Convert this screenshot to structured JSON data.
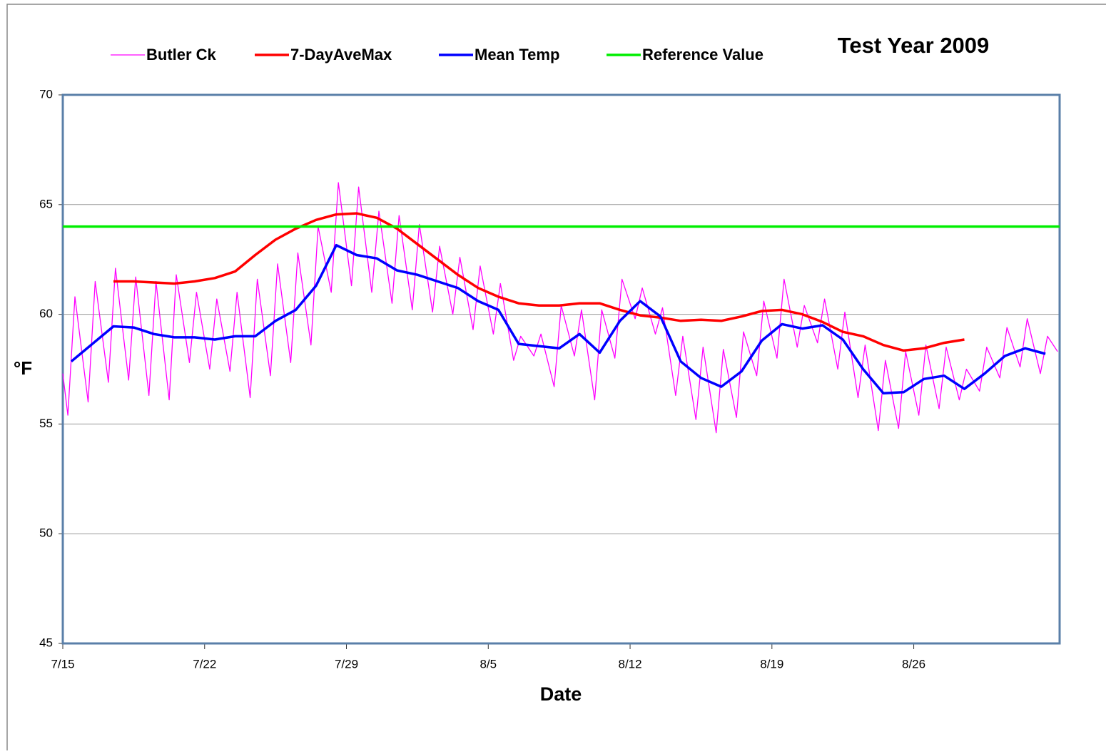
{
  "chart_data": {
    "type": "line",
    "title": "Test Year 2009",
    "xlabel": "Date",
    "ylabel": "°F",
    "xlim": [
      0,
      49.2
    ],
    "ylim": [
      45,
      70
    ],
    "xticks": [
      {
        "value": 0,
        "label": "7/15"
      },
      {
        "value": 7,
        "label": "7/22"
      },
      {
        "value": 14,
        "label": "7/29"
      },
      {
        "value": 21,
        "label": "8/5"
      },
      {
        "value": 28,
        "label": "8/12"
      },
      {
        "value": 35,
        "label": "8/19"
      },
      {
        "value": 42,
        "label": "8/26"
      }
    ],
    "yticks": [
      45,
      50,
      55,
      60,
      65,
      70
    ],
    "grid": true,
    "series": [
      {
        "name": "Butler Ck",
        "color": "#ff00ff",
        "x": [
          0,
          0.25,
          0.6,
          1.25,
          1.6,
          2.25,
          2.6,
          3.25,
          3.6,
          4.25,
          4.6,
          5.25,
          5.6,
          6.25,
          6.6,
          7.25,
          7.6,
          8.25,
          8.6,
          9.25,
          9.6,
          10.25,
          10.6,
          11.25,
          11.6,
          12.25,
          12.6,
          13.25,
          13.6,
          14.25,
          14.6,
          15.25,
          15.6,
          16.25,
          16.6,
          17.25,
          17.6,
          18.25,
          18.6,
          19.25,
          19.6,
          20.25,
          20.6,
          21.25,
          21.6,
          22.25,
          22.6,
          23.25,
          23.6,
          24.25,
          24.6,
          25.25,
          25.6,
          26.25,
          26.6,
          27.25,
          27.6,
          28.25,
          28.6,
          29.25,
          29.6,
          30.25,
          30.6,
          31.25,
          31.6,
          32.25,
          32.6,
          33.25,
          33.6,
          34.25,
          34.6,
          35.25,
          35.6,
          36.25,
          36.6,
          37.25,
          37.6,
          38.25,
          38.6,
          39.25,
          39.6,
          40.25,
          40.6,
          41.25,
          41.6,
          42.25,
          42.6,
          43.25,
          43.6,
          44.25,
          44.6,
          45.25,
          45.6,
          46.25,
          46.6,
          47.25,
          47.6,
          48.25,
          48.6,
          49.1
        ],
        "values": [
          57.3,
          55.4,
          60.8,
          56.0,
          61.5,
          56.9,
          62.1,
          57.0,
          61.7,
          56.3,
          61.5,
          56.1,
          61.8,
          57.8,
          61.0,
          57.5,
          60.7,
          57.4,
          61.0,
          56.2,
          61.6,
          57.2,
          62.3,
          57.8,
          62.8,
          58.6,
          64.0,
          61.0,
          66.0,
          61.3,
          65.8,
          61.0,
          64.7,
          60.5,
          64.5,
          60.2,
          64.1,
          60.1,
          63.1,
          60.0,
          62.6,
          59.3,
          62.2,
          59.1,
          61.4,
          57.9,
          59.0,
          58.1,
          59.1,
          56.7,
          60.4,
          58.1,
          60.2,
          56.1,
          60.2,
          58.0,
          61.6,
          59.8,
          61.2,
          59.1,
          60.3,
          56.3,
          59.0,
          55.2,
          58.5,
          54.6,
          58.4,
          55.3,
          59.2,
          57.2,
          60.6,
          58.0,
          61.6,
          58.5,
          60.4,
          58.7,
          60.7,
          57.5,
          60.1,
          56.2,
          58.6,
          54.7,
          57.9,
          54.8,
          58.3,
          55.4,
          58.6,
          55.7,
          58.5,
          56.1,
          57.5,
          56.5,
          58.5,
          57.1,
          59.4,
          57.6,
          59.8,
          57.3,
          59.0,
          58.3
        ]
      },
      {
        "name": "7-DayAveMax",
        "color": "#ff0000",
        "x": [
          2.5,
          3.5,
          4.5,
          5.5,
          6.5,
          7.5,
          8.5,
          9.5,
          10.5,
          11.5,
          12.5,
          13.5,
          14.5,
          15.5,
          16.5,
          17.5,
          18.5,
          19.5,
          20.5,
          21.5,
          22.5,
          23.5,
          24.5,
          25.5,
          26.5,
          27.5,
          28.5,
          29.5,
          30.5,
          31.5,
          32.5,
          33.5,
          34.5,
          35.5,
          36.5,
          37.5,
          38.5,
          39.5,
          40.5,
          41.5,
          42.5,
          43.5,
          44.5
        ],
        "values": [
          61.5,
          61.5,
          61.45,
          61.4,
          61.5,
          61.65,
          61.95,
          62.7,
          63.4,
          63.9,
          64.3,
          64.55,
          64.6,
          64.4,
          63.9,
          63.2,
          62.5,
          61.8,
          61.2,
          60.8,
          60.5,
          60.4,
          60.4,
          60.5,
          60.5,
          60.2,
          59.95,
          59.85,
          59.7,
          59.75,
          59.7,
          59.9,
          60.15,
          60.2,
          60.0,
          59.65,
          59.2,
          59.0,
          58.6,
          58.35,
          58.45,
          58.7,
          58.85
        ]
      },
      {
        "name": "Mean Temp",
        "color": "#0000ff",
        "x": [
          0.42,
          2.5,
          3.5,
          4.5,
          5.5,
          6.5,
          7.5,
          8.5,
          9.5,
          10.5,
          11.5,
          12.5,
          13.5,
          14.5,
          15.5,
          16.5,
          17.5,
          18.5,
          19.5,
          20.5,
          21.5,
          22.5,
          23.5,
          24.5,
          25.5,
          26.5,
          27.5,
          28.5,
          29.5,
          30.5,
          31.5,
          32.5,
          33.5,
          34.5,
          35.5,
          36.5,
          37.5,
          38.5,
          39.5,
          40.5,
          41.5,
          42.5,
          43.5,
          44.5,
          45.5,
          46.5,
          47.5,
          48.5
        ],
        "values": [
          57.85,
          59.45,
          59.4,
          59.1,
          58.95,
          58.95,
          58.85,
          59.0,
          59.0,
          59.7,
          60.2,
          61.3,
          63.15,
          62.7,
          62.55,
          62.0,
          61.8,
          61.5,
          61.2,
          60.6,
          60.2,
          58.65,
          58.55,
          58.45,
          59.1,
          58.25,
          59.7,
          60.6,
          59.9,
          57.85,
          57.1,
          56.7,
          57.4,
          58.8,
          59.55,
          59.35,
          59.5,
          58.85,
          57.5,
          56.4,
          56.45,
          57.05,
          57.2,
          56.6,
          57.3,
          58.1,
          58.45,
          58.2
        ]
      },
      {
        "name": "Reference Value",
        "color": "#00ee00",
        "x": [
          0,
          49.2
        ],
        "values": [
          64,
          64
        ]
      }
    ]
  }
}
